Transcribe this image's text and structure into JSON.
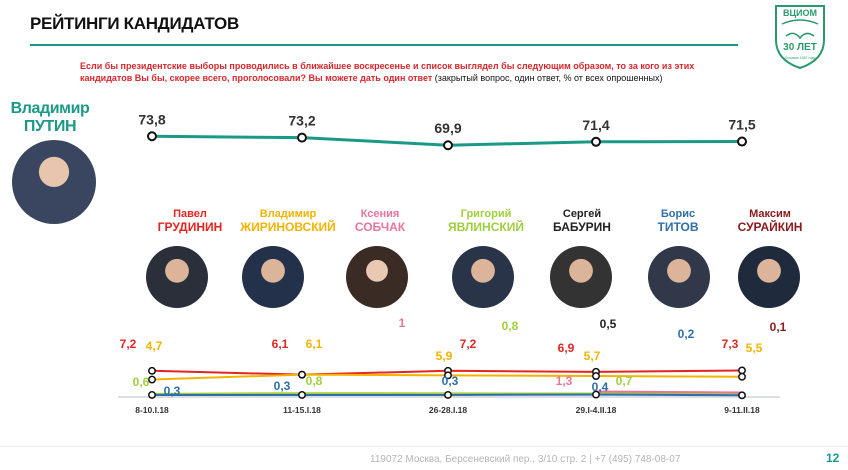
{
  "header": {
    "title": "РЕЙТИНГИ КАНДИДАТОВ",
    "page_number": "12"
  },
  "logo": {
    "top": "ВЦИОМ",
    "mid": "30 ЛЕТ",
    "bottom": "Основан 1987 году"
  },
  "question": {
    "main": "Если бы президентские выборы проводились в ближайшее воскресенье и список выглядел бы следующим образом, то за кого из этих кандидатов Вы бы, скорее всего, проголосовали? Вы можете дать один ответ",
    "note": " (закрытый вопрос, один ответ, % от всех опрошенных)"
  },
  "putin": {
    "first": "Владимир",
    "last": "ПУТИН",
    "color": "#1a9a86"
  },
  "candidates": [
    {
      "first": "Павел",
      "last": "ГРУДИНИН",
      "color": "#e52421"
    },
    {
      "first": "Владимир",
      "last": "ЖИРИНОВСКИЙ",
      "color": "#f2b400"
    },
    {
      "first": "Ксения",
      "last": "СОБЧАК",
      "color": "#e9749a"
    },
    {
      "first": "Григорий",
      "last": "ЯВЛИНСКИЙ",
      "color": "#9fcf3c"
    },
    {
      "first": "Сергей",
      "last": "БАБУРИН",
      "color": "#222222"
    },
    {
      "first": "Борис",
      "last": "ТИТОВ",
      "color": "#2e6fa8"
    },
    {
      "first": "Максим",
      "last": "СУРАЙКИН",
      "color": "#8b1a1a"
    }
  ],
  "footer": {
    "address": "119072 Москва, Берсеневский пер., 3/10 стр. 2  |  +7 (495) 748-08-07"
  },
  "chart_data": {
    "type": "line",
    "x": [
      "8-10.I.18",
      "11-15.I.18",
      "26-28.I.18",
      "29.I-4.II.18",
      "9-11.II.18"
    ],
    "top_series": {
      "name": "ПУТИН",
      "color": "#1a9a86",
      "values": [
        73.8,
        73.2,
        69.9,
        71.4,
        71.5
      ]
    },
    "series": [
      {
        "name": "ГРУДИНИН",
        "color": "#e52421",
        "values": [
          7.2,
          6.1,
          7.2,
          6.9,
          7.3
        ]
      },
      {
        "name": "ЖИРИНОВСКИЙ",
        "color": "#f2b400",
        "values": [
          4.7,
          6.1,
          5.9,
          5.7,
          5.5
        ]
      },
      {
        "name": "ЯВЛИНСКИЙ",
        "color": "#9fcf3c",
        "values": [
          0.6,
          0.8,
          null,
          0.7,
          0.8
        ]
      },
      {
        "name": "СОБЧАК",
        "color": "#e9749a",
        "values": [
          null,
          null,
          null,
          1.3,
          1
        ]
      },
      {
        "name": "ТИТОВ",
        "color": "#2e6fa8",
        "values": [
          0.3,
          0.3,
          0.3,
          0.4,
          0.2
        ]
      },
      {
        "name": "БАБУРИН",
        "color": "#222222",
        "values": [
          null,
          null,
          null,
          null,
          0.5
        ]
      },
      {
        "name": "СУРАЙКИН",
        "color": "#8b1a1a",
        "values": [
          null,
          null,
          null,
          null,
          0.1
        ]
      }
    ]
  }
}
